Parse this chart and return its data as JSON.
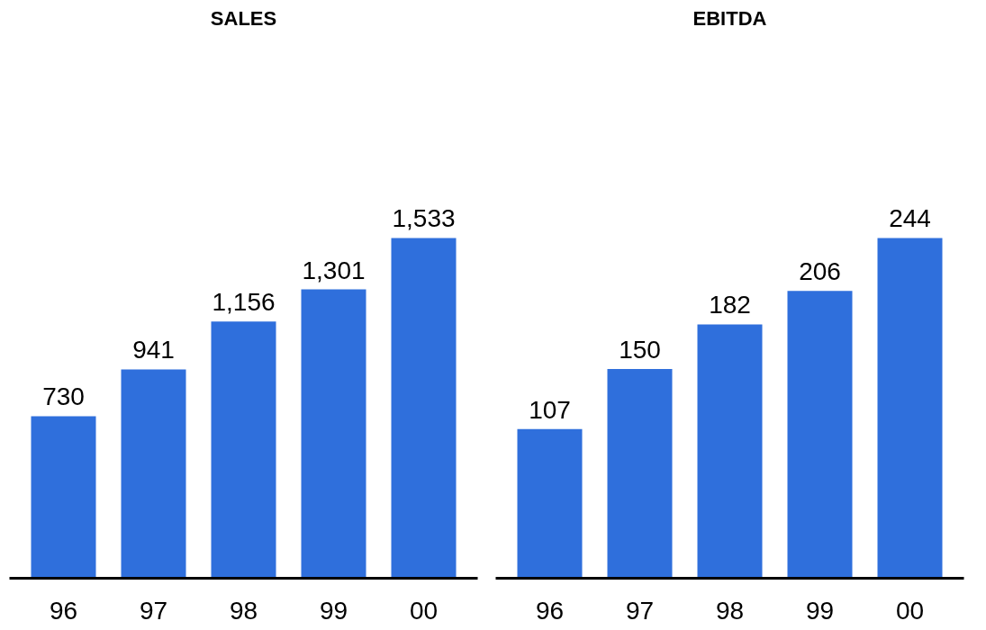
{
  "chart_data": [
    {
      "type": "bar",
      "title": "SALES",
      "categories": [
        "96",
        "97",
        "98",
        "99",
        "00"
      ],
      "values": [
        730,
        941,
        1156,
        1301,
        1533
      ],
      "value_labels": [
        "730",
        "941",
        "1,156",
        "1,301",
        "1,533"
      ],
      "color": "#2f6fdc",
      "grid": false,
      "tick_labels": "x"
    },
    {
      "type": "bar",
      "title": "EBITDA",
      "categories": [
        "96",
        "97",
        "98",
        "99",
        "00"
      ],
      "values": [
        107,
        150,
        182,
        206,
        244
      ],
      "color": "#2f6fdc",
      "data_labels": true,
      "grid": false,
      "tick_labels": "x"
    }
  ]
}
